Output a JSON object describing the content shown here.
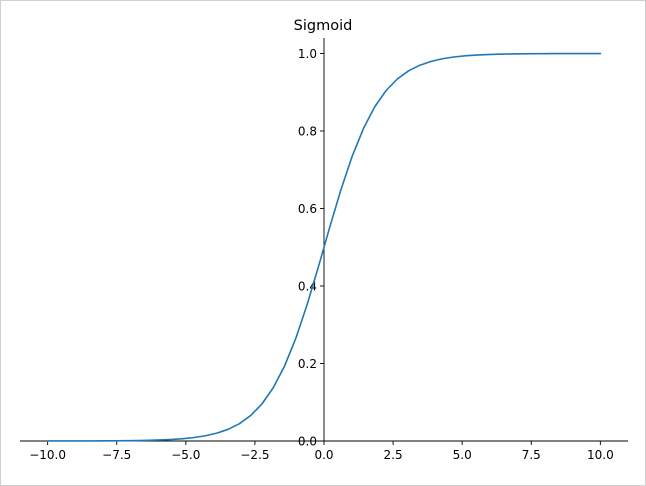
{
  "chart_data": {
    "type": "line",
    "title": "Sigmoid",
    "xlabel": "",
    "ylabel": "",
    "xlim": [
      -11,
      11
    ],
    "ylim": [
      0,
      1.04
    ],
    "grid": false,
    "spines": "centered at origin",
    "x_ticks": [
      -10.0,
      -7.5,
      -5.0,
      -2.5,
      0.0,
      2.5,
      5.0,
      7.5,
      10.0
    ],
    "x_tick_labels": [
      "−10.0",
      "−7.5",
      "−5.0",
      "−2.5",
      "0.0",
      "2.5",
      "5.0",
      "7.5",
      "10.0"
    ],
    "y_ticks": [
      0.0,
      0.2,
      0.4,
      0.6,
      0.8,
      1.0
    ],
    "y_tick_labels": [
      "0.0",
      "0.2",
      "0.4",
      "0.6",
      "0.8",
      "1.0"
    ],
    "series": [
      {
        "color": "#1f77b4",
        "x": [
          -10.0,
          -9.5918,
          -9.1837,
          -8.7755,
          -8.3673,
          -7.9592,
          -7.551,
          -7.1429,
          -6.7347,
          -6.3265,
          -5.9184,
          -5.5102,
          -5.102,
          -4.6939,
          -4.2857,
          -3.8776,
          -3.4694,
          -3.0612,
          -2.6531,
          -2.2449,
          -1.8367,
          -1.4286,
          -1.0204,
          -0.6122,
          -0.2041,
          0.2041,
          0.6122,
          1.0204,
          1.4286,
          1.8367,
          2.2449,
          2.6531,
          3.0612,
          3.4694,
          3.8776,
          4.2857,
          4.6939,
          5.102,
          5.5102,
          5.9184,
          6.3265,
          6.7347,
          7.1429,
          7.551,
          7.9592,
          8.3673,
          8.7755,
          9.1837,
          9.5918,
          10.0
        ],
        "y": [
          4.54e-05,
          6.83e-05,
          0.0001027,
          0.0001545,
          0.0002324,
          0.0003494,
          0.0005254,
          0.0007901,
          0.001188,
          0.001785,
          0.00268,
          0.004022,
          0.006031,
          0.009032,
          0.01358,
          0.02028,
          0.03018,
          0.04472,
          0.06579,
          0.09578,
          0.1374,
          0.1933,
          0.2649,
          0.3516,
          0.4492,
          0.5508,
          0.6484,
          0.7351,
          0.8067,
          0.8626,
          0.9042,
          0.9342,
          0.9553,
          0.9698,
          0.9797,
          0.9864,
          0.991,
          0.99397,
          0.99598,
          0.99732,
          0.998215,
          0.998812,
          0.99921,
          0.999475,
          0.999651,
          0.999768,
          0.999846,
          0.999897,
          0.999932,
          0.999955
        ]
      }
    ]
  }
}
